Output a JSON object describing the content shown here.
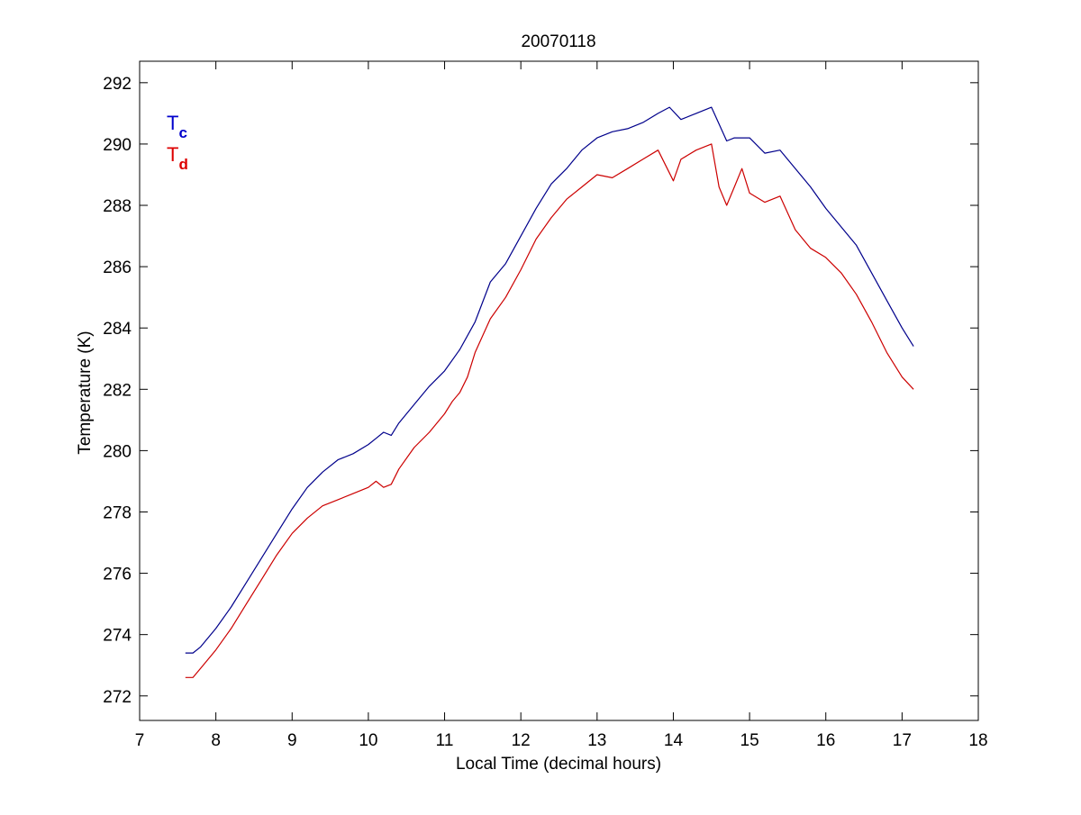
{
  "chart_data": {
    "type": "line",
    "title": "20070118",
    "xlabel": "Local Time (decimal hours)",
    "ylabel": "Temperature (K)",
    "xlim": [
      7,
      18
    ],
    "ylim": [
      271.2,
      292.7
    ],
    "xticks": [
      "7",
      "8",
      "9",
      "10",
      "11",
      "12",
      "13",
      "14",
      "15",
      "16",
      "17",
      "18"
    ],
    "yticks": [
      "272",
      "274",
      "276",
      "278",
      "280",
      "282",
      "284",
      "286",
      "288",
      "290",
      "292"
    ],
    "grid": false,
    "legend": {
      "placement": "top-left",
      "entries": [
        {
          "base": "T",
          "sub": "c",
          "color": "#0000cc"
        },
        {
          "base": "T",
          "sub": "d",
          "color": "#dd0000"
        }
      ]
    },
    "series": [
      {
        "color": "#00008b",
        "x": [
          7.6,
          7.7,
          7.8,
          8.0,
          8.2,
          8.4,
          8.6,
          8.8,
          9.0,
          9.2,
          9.4,
          9.6,
          9.8,
          10.0,
          10.1,
          10.2,
          10.3,
          10.4,
          10.6,
          10.8,
          11.0,
          11.2,
          11.4,
          11.6,
          11.8,
          12.0,
          12.2,
          12.4,
          12.6,
          12.8,
          13.0,
          13.2,
          13.4,
          13.6,
          13.8,
          13.95,
          14.1,
          14.3,
          14.5,
          14.7,
          14.8,
          15.0,
          15.2,
          15.4,
          15.6,
          15.8,
          16.0,
          16.2,
          16.4,
          16.6,
          16.8,
          17.0,
          17.15
        ],
        "y": [
          273.4,
          273.4,
          273.6,
          274.2,
          274.9,
          275.7,
          276.5,
          277.3,
          278.1,
          278.8,
          279.3,
          279.7,
          279.9,
          280.2,
          280.4,
          280.6,
          280.5,
          280.9,
          281.5,
          282.1,
          282.6,
          283.3,
          284.2,
          285.5,
          286.1,
          287.0,
          287.9,
          288.7,
          289.2,
          289.8,
          290.2,
          290.4,
          290.5,
          290.7,
          291.0,
          291.2,
          290.8,
          291.0,
          291.2,
          290.1,
          290.2,
          290.2,
          289.7,
          289.8,
          289.2,
          288.6,
          287.9,
          287.3,
          286.7,
          285.8,
          284.9,
          284.0,
          283.4
        ]
      },
      {
        "color": "#cc0000",
        "x": [
          7.6,
          7.7,
          7.8,
          8.0,
          8.2,
          8.4,
          8.6,
          8.8,
          9.0,
          9.2,
          9.4,
          9.6,
          9.8,
          10.0,
          10.1,
          10.2,
          10.3,
          10.4,
          10.6,
          10.8,
          11.0,
          11.1,
          11.2,
          11.3,
          11.4,
          11.6,
          11.8,
          12.0,
          12.2,
          12.4,
          12.6,
          12.8,
          13.0,
          13.2,
          13.4,
          13.6,
          13.8,
          14.0,
          14.1,
          14.3,
          14.5,
          14.6,
          14.7,
          14.8,
          14.9,
          15.0,
          15.2,
          15.4,
          15.6,
          15.8,
          16.0,
          16.2,
          16.4,
          16.6,
          16.8,
          17.0,
          17.15
        ],
        "y": [
          272.6,
          272.6,
          272.9,
          273.5,
          274.2,
          275.0,
          275.8,
          276.6,
          277.3,
          277.8,
          278.2,
          278.4,
          278.6,
          278.8,
          279.0,
          278.8,
          278.9,
          279.4,
          280.1,
          280.6,
          281.2,
          281.6,
          281.9,
          282.4,
          283.2,
          284.3,
          285.0,
          285.9,
          286.9,
          287.6,
          288.2,
          288.6,
          289.0,
          288.9,
          289.2,
          289.5,
          289.8,
          288.8,
          289.5,
          289.8,
          290.0,
          288.6,
          288.0,
          288.6,
          289.2,
          288.4,
          288.1,
          288.3,
          287.2,
          286.6,
          286.3,
          285.8,
          285.1,
          284.2,
          283.2,
          282.4,
          282.0
        ]
      }
    ]
  }
}
